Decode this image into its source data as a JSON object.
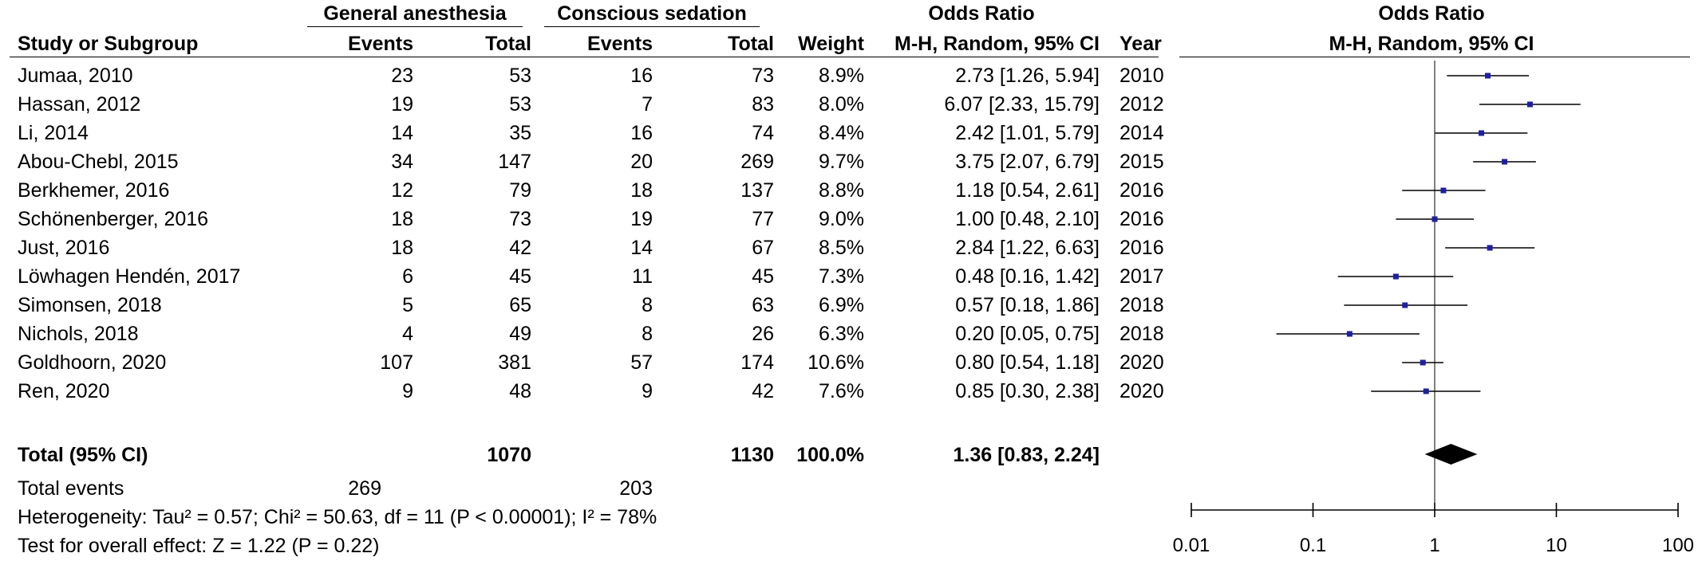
{
  "header": {
    "group1": "General anesthesia",
    "group2": "Conscious sedation",
    "or_top": "Odds Ratio",
    "plot_top": "Odds Ratio",
    "study": "Study or Subgroup",
    "events1": "Events",
    "total1": "Total",
    "events2": "Events",
    "total2": "Total",
    "weight": "Weight",
    "method": "M-H, Random, 95% CI",
    "year": "Year",
    "plot_method": "M-H, Random, 95% CI"
  },
  "rows": [
    {
      "study": "Jumaa, 2010",
      "e1": "23",
      "t1": "53",
      "e2": "16",
      "t2": "73",
      "weight": "8.9%",
      "ci": "2.73 [1.26, 5.94]",
      "year": "2010"
    },
    {
      "study": "Hassan, 2012",
      "e1": "19",
      "t1": "53",
      "e2": "7",
      "t2": "83",
      "weight": "8.0%",
      "ci": "6.07 [2.33, 15.79]",
      "year": "2012"
    },
    {
      "study": "Li, 2014",
      "e1": "14",
      "t1": "35",
      "e2": "16",
      "t2": "74",
      "weight": "8.4%",
      "ci": "2.42 [1.01, 5.79]",
      "year": "2014"
    },
    {
      "study": "Abou-Chebl, 2015",
      "e1": "34",
      "t1": "147",
      "e2": "20",
      "t2": "269",
      "weight": "9.7%",
      "ci": "3.75 [2.07, 6.79]",
      "year": "2015"
    },
    {
      "study": "Berkhemer, 2016",
      "e1": "12",
      "t1": "79",
      "e2": "18",
      "t2": "137",
      "weight": "8.8%",
      "ci": "1.18 [0.54, 2.61]",
      "year": "2016"
    },
    {
      "study": "Schönenberger, 2016",
      "e1": "18",
      "t1": "73",
      "e2": "19",
      "t2": "77",
      "weight": "9.0%",
      "ci": "1.00 [0.48, 2.10]",
      "year": "2016"
    },
    {
      "study": "Just, 2016",
      "e1": "18",
      "t1": "42",
      "e2": "14",
      "t2": "67",
      "weight": "8.5%",
      "ci": "2.84 [1.22, 6.63]",
      "year": "2016"
    },
    {
      "study": "Löwhagen Hendén, 2017",
      "e1": "6",
      "t1": "45",
      "e2": "11",
      "t2": "45",
      "weight": "7.3%",
      "ci": "0.48 [0.16, 1.42]",
      "year": "2017"
    },
    {
      "study": "Simonsen, 2018",
      "e1": "5",
      "t1": "65",
      "e2": "8",
      "t2": "63",
      "weight": "6.9%",
      "ci": "0.57 [0.18, 1.86]",
      "year": "2018"
    },
    {
      "study": "Nichols, 2018",
      "e1": "4",
      "t1": "49",
      "e2": "8",
      "t2": "26",
      "weight": "6.3%",
      "ci": "0.20 [0.05, 0.75]",
      "year": "2018"
    },
    {
      "study": "Goldhoorn, 2020",
      "e1": "107",
      "t1": "381",
      "e2": "57",
      "t2": "174",
      "weight": "10.6%",
      "ci": "0.80 [0.54, 1.18]",
      "year": "2020"
    },
    {
      "study": "Ren, 2020",
      "e1": "9",
      "t1": "48",
      "e2": "9",
      "t2": "42",
      "weight": "7.6%",
      "ci": "0.85 [0.30, 2.38]",
      "year": "2020"
    }
  ],
  "total": {
    "label": "Total (95% CI)",
    "t1": "1070",
    "t2": "1130",
    "weight": "100.0%",
    "ci": "1.36 [0.83, 2.24]"
  },
  "events": {
    "label": "Total events",
    "e1": "269",
    "e2": "203"
  },
  "heterogeneity": "Heterogeneity: Tau² = 0.57; Chi² = 50.63, df = 11 (P < 0.00001); I² = 78%",
  "overall": "Test for overall effect: Z = 1.22 (P = 0.22)",
  "chart_data": {
    "type": "forest",
    "scale": "log",
    "xlim": [
      0.01,
      100
    ],
    "xticks": [
      0.01,
      0.1,
      1,
      10,
      100
    ],
    "xtick_labels": [
      "0.01",
      "0.1",
      "1",
      "10",
      "100"
    ],
    "points": [
      {
        "or": 2.73,
        "lo": 1.26,
        "hi": 5.94
      },
      {
        "or": 6.07,
        "lo": 2.33,
        "hi": 15.79
      },
      {
        "or": 2.42,
        "lo": 1.01,
        "hi": 5.79
      },
      {
        "or": 3.75,
        "lo": 2.07,
        "hi": 6.79
      },
      {
        "or": 1.18,
        "lo": 0.54,
        "hi": 2.61
      },
      {
        "or": 1.0,
        "lo": 0.48,
        "hi": 2.1
      },
      {
        "or": 2.84,
        "lo": 1.22,
        "hi": 6.63
      },
      {
        "or": 0.48,
        "lo": 0.16,
        "hi": 1.42
      },
      {
        "or": 0.57,
        "lo": 0.18,
        "hi": 1.86
      },
      {
        "or": 0.2,
        "lo": 0.05,
        "hi": 0.75
      },
      {
        "or": 0.8,
        "lo": 0.54,
        "hi": 1.18
      },
      {
        "or": 0.85,
        "lo": 0.3,
        "hi": 2.38
      }
    ],
    "overall": {
      "or": 1.36,
      "lo": 0.83,
      "hi": 2.24
    },
    "colors": {
      "marker": "#1f1fa0",
      "line": "#000000",
      "diamond": "#000000"
    }
  }
}
